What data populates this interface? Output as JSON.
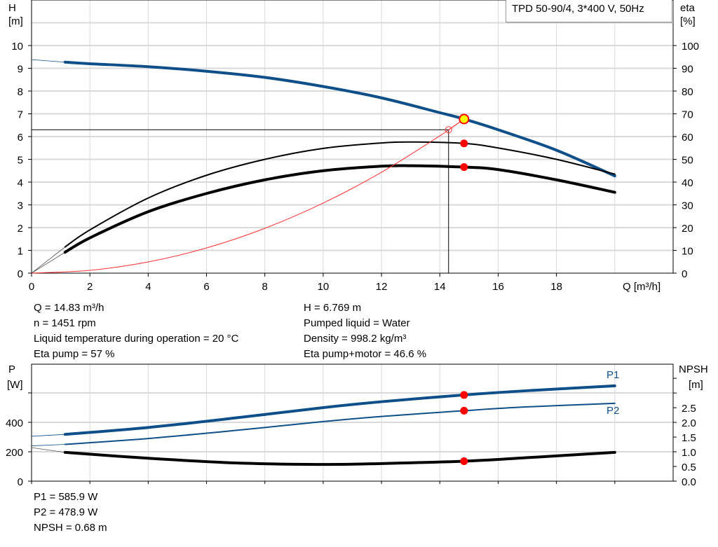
{
  "legend_title": "TPD 50-90/4, 3*400 V, 50Hz",
  "colors": {
    "head": "#0e4f8a",
    "power": "#0e4f8a",
    "eta": "#000000",
    "npsh": "#000000",
    "system": "#ff3030",
    "duty_point": "#ff0000",
    "duty_head_point": "#ffff00",
    "grid": "#d9d9d9"
  },
  "info_top": {
    "left": [
      "Q = 14.83 m³/h",
      "n = 1451 rpm",
      "Liquid temperature during operation = 20 °C",
      "Eta pump = 57 %"
    ],
    "right": [
      "H = 6.769 m",
      "Pumped liquid = Water",
      "Density = 998.2 kg/m³",
      "Eta pump+motor = 46.6 %"
    ]
  },
  "info_bottom": [
    "P1 = 585.9 W",
    "P2 = 478.9 W",
    "NPSH = 0.68 m"
  ],
  "chart_data": [
    {
      "type": "line",
      "title": "",
      "xlabel": "Q [m³/h]",
      "ylabel_left": [
        "H",
        "[m]"
      ],
      "ylabel_right": [
        "eta",
        "[%]"
      ],
      "xlim": [
        0,
        22
      ],
      "ylim_left": [
        0,
        12
      ],
      "ylim_right": [
        0,
        120
      ],
      "xticks": [
        0,
        2,
        4,
        6,
        8,
        10,
        12,
        14,
        16,
        18
      ],
      "yticks_left": [
        0,
        1,
        2,
        3,
        4,
        5,
        6,
        7,
        8,
        9,
        10
      ],
      "yticks_right": [
        0,
        10,
        20,
        30,
        40,
        50,
        60,
        70,
        80,
        90,
        100
      ],
      "grid": true,
      "series": [
        {
          "key": "H",
          "axis": "left",
          "x": [
            1.15,
            2,
            4,
            6,
            8,
            10,
            12,
            14,
            14.83,
            16,
            18,
            20
          ],
          "y": [
            9.27,
            9.2,
            9.07,
            8.87,
            8.6,
            8.2,
            7.7,
            7.05,
            6.77,
            6.3,
            5.4,
            4.27
          ],
          "extrapolated_from": [
            0,
            9.38
          ]
        },
        {
          "key": "eta_pump",
          "axis": "right",
          "x": [
            1.15,
            2,
            4,
            6,
            8,
            10,
            12,
            13.2,
            14.83,
            16,
            18,
            20
          ],
          "y": [
            11.5,
            19,
            33,
            43,
            50,
            54.8,
            57.2,
            57.6,
            57,
            55,
            50,
            43.5
          ],
          "extrapolated_from": [
            0,
            0
          ]
        },
        {
          "key": "eta_total",
          "axis": "right",
          "x": [
            1.15,
            2,
            4,
            6,
            8,
            10,
            12,
            13,
            14.83,
            16,
            18,
            20
          ],
          "y": [
            9.2,
            15.5,
            27,
            35,
            41,
            45,
            47,
            47.2,
            46.6,
            45.5,
            41,
            35.5
          ],
          "extrapolated_from": [
            0,
            0
          ]
        },
        {
          "key": "system",
          "axis": "left",
          "x": [
            0,
            2,
            4,
            6,
            8,
            10,
            12,
            14,
            14.83
          ],
          "y": [
            0,
            0.123,
            0.492,
            1.108,
            1.97,
            3.078,
            4.432,
            6.033,
            6.769
          ]
        }
      ],
      "duty_point": {
        "Q": 14.83,
        "H": 6.769,
        "eta_pump": 57,
        "eta_total": 46.6
      },
      "reference_point": {
        "Q": 14.3,
        "H": 6.3
      }
    },
    {
      "type": "line",
      "title": "",
      "ylabel_left": [
        "P",
        "[W]"
      ],
      "ylabel_right": [
        "NPSH",
        "[m]"
      ],
      "xlim": [
        0,
        22
      ],
      "ylim_left": [
        0,
        795
      ],
      "ylim_right": [
        0,
        3.98
      ],
      "yticks_left": [
        0,
        200,
        400
      ],
      "yticks_right": [
        "0.0",
        "0.5",
        "1.0",
        "1.5",
        "2.0",
        "2.5"
      ],
      "grid": true,
      "series": [
        {
          "key": "P1",
          "name": "P1",
          "axis": "left",
          "x": [
            1.15,
            4,
            7,
            10,
            12,
            14.83,
            17,
            20
          ],
          "y": [
            318,
            365,
            430,
            500,
            540,
            586,
            615,
            648
          ],
          "extrapolated_from": [
            0,
            305
          ]
        },
        {
          "key": "P2",
          "name": "P2",
          "axis": "left",
          "x": [
            1.15,
            4,
            7,
            10,
            12,
            14.83,
            17,
            20
          ],
          "y": [
            250,
            290,
            345,
            405,
            440,
            479,
            505,
            529
          ],
          "extrapolated_from": [
            0,
            240
          ]
        },
        {
          "key": "NPSH",
          "axis": "right",
          "x": [
            1.15,
            4,
            7,
            10,
            12,
            14.83,
            17,
            20
          ],
          "y": [
            0.98,
            0.78,
            0.62,
            0.57,
            0.6,
            0.68,
            0.8,
            0.98
          ],
          "extrapolated_from": [
            0,
            1.14
          ]
        }
      ],
      "duty_point": {
        "Q": 14.83,
        "P1": 585.9,
        "P2": 478.9,
        "NPSH": 0.68
      }
    }
  ]
}
